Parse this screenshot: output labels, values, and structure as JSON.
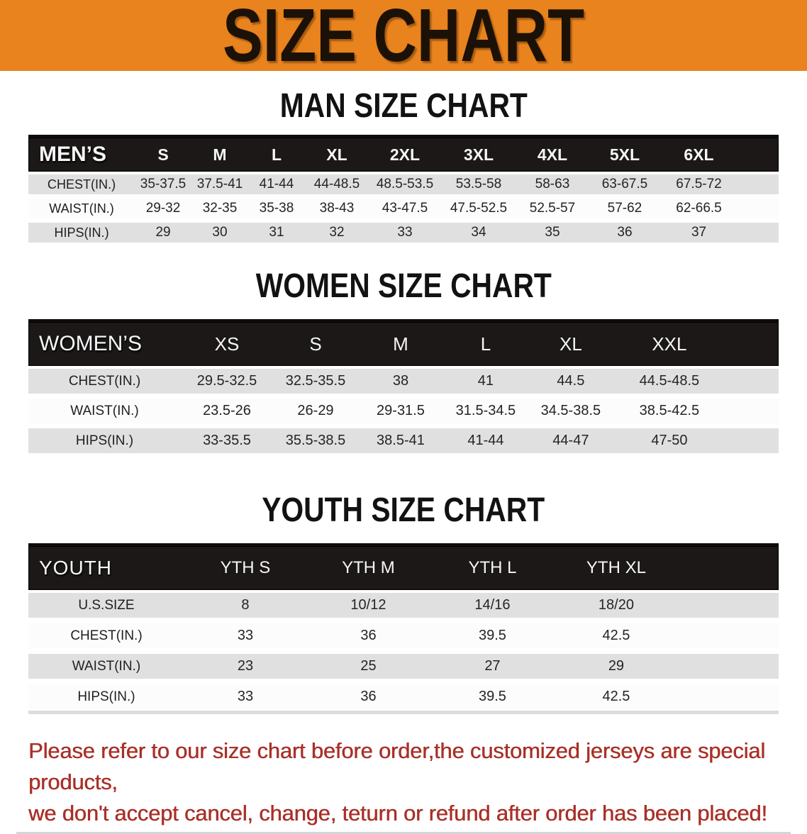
{
  "banner": {
    "title": "SIZE CHART",
    "bg_color": "#E8831E",
    "text_color": "#1C1106"
  },
  "sections": [
    {
      "id": "men",
      "title": "MAN SIZE CHART",
      "header_label": "MEN’S",
      "columns": [
        "S",
        "M",
        "L",
        "XL",
        "2XL",
        "3XL",
        "4XL",
        "5XL",
        "6XL"
      ],
      "rows": [
        {
          "label": "CHEST(IN.)",
          "values": [
            "35-37.5",
            "37.5-41",
            "41-44",
            "44-48.5",
            "48.5-53.5",
            "53.5-58",
            "58-63",
            "63-67.5",
            "67.5-72"
          ]
        },
        {
          "label": "WAIST(IN.)",
          "values": [
            "29-32",
            "32-35",
            "35-38",
            "38-43",
            "43-47.5",
            "47.5-52.5",
            "52.5-57",
            "57-62",
            "62-66.5"
          ]
        },
        {
          "label": "HIPS(IN.)",
          "values": [
            "29",
            "30",
            "31",
            "32",
            "33",
            "34",
            "35",
            "36",
            "37"
          ]
        }
      ]
    },
    {
      "id": "women",
      "title": "WOMEN SIZE CHART",
      "header_label": "WOMEN’S",
      "columns": [
        "XS",
        "S",
        "M",
        "L",
        "XL",
        "XXL"
      ],
      "rows": [
        {
          "label": "CHEST(IN.)",
          "values": [
            "29.5-32.5",
            "32.5-35.5",
            "38",
            "41",
            "44.5",
            "44.5-48.5"
          ]
        },
        {
          "label": "WAIST(IN.)",
          "values": [
            "23.5-26",
            "26-29",
            "29-31.5",
            "31.5-34.5",
            "34.5-38.5",
            "38.5-42.5"
          ]
        },
        {
          "label": "HIPS(IN.)",
          "values": [
            "33-35.5",
            "35.5-38.5",
            "38.5-41",
            "41-44",
            "44-47",
            "47-50"
          ]
        }
      ]
    },
    {
      "id": "youth",
      "title": "YOUTH SIZE CHART",
      "header_label": "YOUTH",
      "columns": [
        "YTH S",
        "YTH M",
        "YTH L",
        "YTH XL"
      ],
      "rows": [
        {
          "label": "U.S.SIZE",
          "values": [
            "8",
            "10/12",
            "14/16",
            "18/20"
          ]
        },
        {
          "label": "CHEST(IN.)",
          "values": [
            "33",
            "36",
            "39.5",
            "42.5"
          ]
        },
        {
          "label": "WAIST(IN.)",
          "values": [
            "23",
            "25",
            "27",
            "29"
          ]
        },
        {
          "label": "HIPS(IN.)",
          "values": [
            "33",
            "36",
            "39.5",
            "42.5"
          ]
        }
      ]
    }
  ],
  "footer": {
    "line1": "Please refer to our size chart before order,the customized jerseys are special products,",
    "line2": "we don't accept cancel, change, teturn or refund after order has been placed!",
    "text_color": "#A93028"
  },
  "colors": {
    "banner_orange": "#E8831E",
    "table_header_black": "#1B1817",
    "row_stripe_gray": "#E0E0E0",
    "footer_red": "#A93028"
  }
}
